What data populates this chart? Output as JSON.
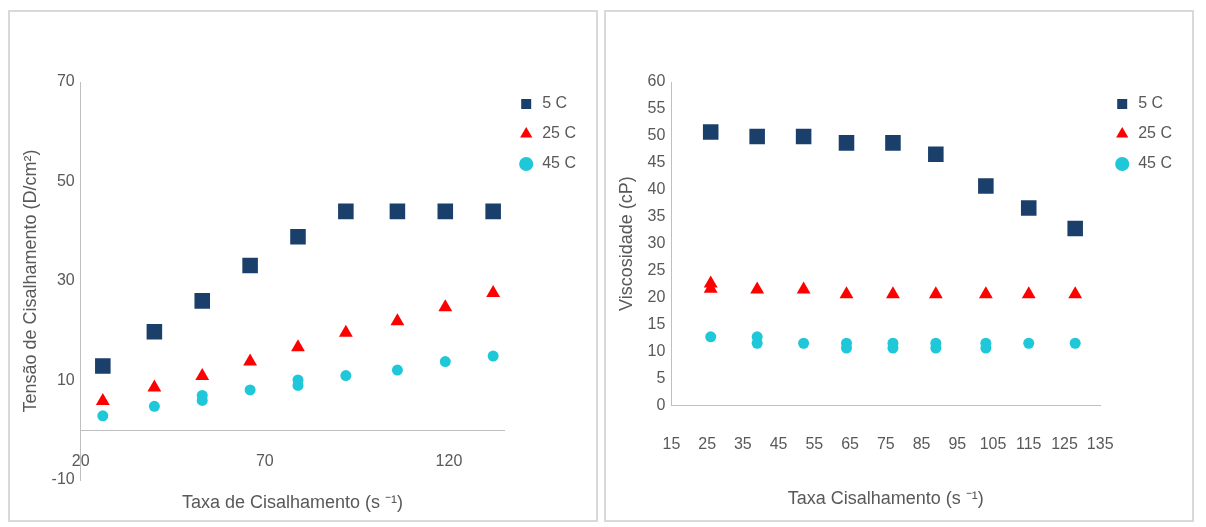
{
  "chart_data": [
    {
      "type": "scatter",
      "xlabel": "Taxa de Cisalhamento (s ⁻¹)",
      "ylabel": "Tensão de Cisalhamento (D/cm²)",
      "xlim": [
        20,
        135
      ],
      "xticks": [
        20,
        70,
        120
      ],
      "ylim": [
        -10,
        70
      ],
      "yticks": [
        -10,
        10,
        30,
        50,
        70
      ],
      "grid": false,
      "legend": "top right",
      "series": [
        {
          "name": "5 C",
          "color": "#1b3f6b",
          "marker": "square",
          "x": [
            26,
            40,
            53,
            66,
            79,
            92,
            106,
            119,
            132
          ],
          "values": [
            12.9,
            19.8,
            26.0,
            33.1,
            38.9,
            44.0,
            44.0,
            44.0,
            44.0
          ]
        },
        {
          "name": "25 C",
          "color": "#ff0000",
          "marker": "triangle",
          "x": [
            26,
            40,
            53,
            66,
            79,
            92,
            106,
            119,
            132
          ],
          "values": [
            5.9,
            8.6,
            10.9,
            13.8,
            16.7,
            19.6,
            21.9,
            24.7,
            27.6
          ]
        },
        {
          "name": "45 C",
          "color": "#1fc8d8",
          "marker": "circle",
          "x": [
            26,
            40,
            53,
            53,
            66,
            79,
            79,
            92,
            106,
            119,
            132
          ],
          "values": [
            2.9,
            4.8,
            7.0,
            6.0,
            8.1,
            10.1,
            9.0,
            11.0,
            12.1,
            13.8,
            14.9
          ]
        }
      ]
    },
    {
      "type": "scatter",
      "xlabel": "Taxa Cisalhamento (s ⁻¹)",
      "ylabel": "Viscosidade (cP)",
      "xlim": [
        15,
        135
      ],
      "xticks": [
        15,
        25,
        35,
        45,
        55,
        65,
        75,
        85,
        95,
        105,
        115,
        125,
        135
      ],
      "ylim": [
        0,
        60
      ],
      "yticks": [
        0,
        5,
        10,
        15,
        20,
        25,
        30,
        35,
        40,
        45,
        50,
        55,
        60
      ],
      "grid": false,
      "legend": "top right",
      "series": [
        {
          "name": "5 C",
          "color": "#1b3f6b",
          "marker": "square",
          "x": [
            26,
            39,
            52,
            64,
            77,
            89,
            103,
            115,
            128
          ],
          "values": [
            50.7,
            49.9,
            49.9,
            48.7,
            48.7,
            46.6,
            40.7,
            36.6,
            32.8
          ]
        },
        {
          "name": "25 C",
          "color": "#ff0000",
          "marker": "triangle",
          "x": [
            26,
            26,
            39,
            52,
            64,
            77,
            89,
            103,
            115,
            128
          ],
          "values": [
            22.6,
            21.6,
            21.5,
            21.5,
            20.6,
            20.6,
            20.6,
            20.6,
            20.6,
            20.6
          ]
        },
        {
          "name": "45 C",
          "color": "#1fc8d8",
          "marker": "circle",
          "x": [
            26,
            39,
            39,
            52,
            64,
            64,
            77,
            77,
            89,
            89,
            103,
            103,
            115,
            128
          ],
          "values": [
            12.7,
            12.7,
            11.5,
            11.5,
            11.5,
            10.6,
            11.5,
            10.6,
            11.5,
            10.6,
            11.5,
            10.6,
            11.5,
            11.5
          ]
        }
      ]
    }
  ]
}
